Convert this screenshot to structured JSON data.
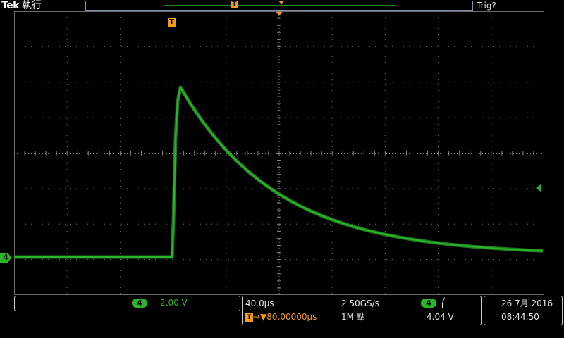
{
  "header": {
    "brand": "Tek",
    "run_state": "執行",
    "trigger_status": "Trig?"
  },
  "record_bar": {
    "trigger_marker": "T"
  },
  "screen": {
    "trigger_position_label": "T",
    "channel_marker": "4"
  },
  "channel_panel": {
    "channel": "4",
    "scale": "2.00 V"
  },
  "horizontal_panel": {
    "time_per_div": "40.0µs",
    "sample_rate": "2.50GS/s",
    "trigger_icon": "T",
    "delay": "80.00000µs",
    "delay_prefix": "→▼",
    "record_length": "1M 點",
    "trigger_channel": "4",
    "trigger_slope": "⎛",
    "trigger_level": "4.04 V"
  },
  "clock": {
    "date": "26 7月 2016",
    "time": "08:44:50"
  },
  "colors": {
    "background": "#000000",
    "channel4": "#28b628",
    "trigger": "#f39a1a",
    "graticule": "#6a6a6a"
  }
}
